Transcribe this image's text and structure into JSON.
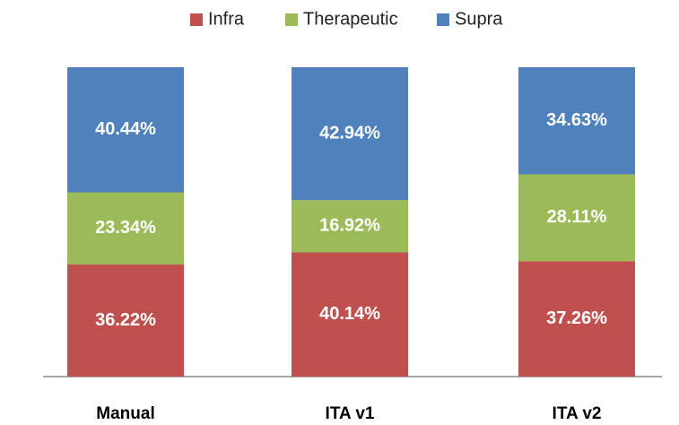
{
  "chart_data": {
    "type": "stacked_bar",
    "categories": [
      "Manual",
      "ITA v1",
      "ITA v2"
    ],
    "series": [
      {
        "name": "Infra",
        "color": "#c0504d",
        "values": [
          36.22,
          40.14,
          37.26
        ],
        "value_labels": [
          "36.22%",
          "40.14%",
          "37.26%"
        ]
      },
      {
        "name": "Therapeutic",
        "color": "#9bbb59",
        "values": [
          23.34,
          16.92,
          28.11
        ],
        "value_labels": [
          "23.34%",
          "16.92%",
          "28.11%"
        ]
      },
      {
        "name": "Supra",
        "color": "#4f81bd",
        "values": [
          40.44,
          42.94,
          34.63
        ],
        "value_labels": [
          "40.44%",
          "42.94%",
          "34.63%"
        ]
      }
    ],
    "legend": "top"
  }
}
